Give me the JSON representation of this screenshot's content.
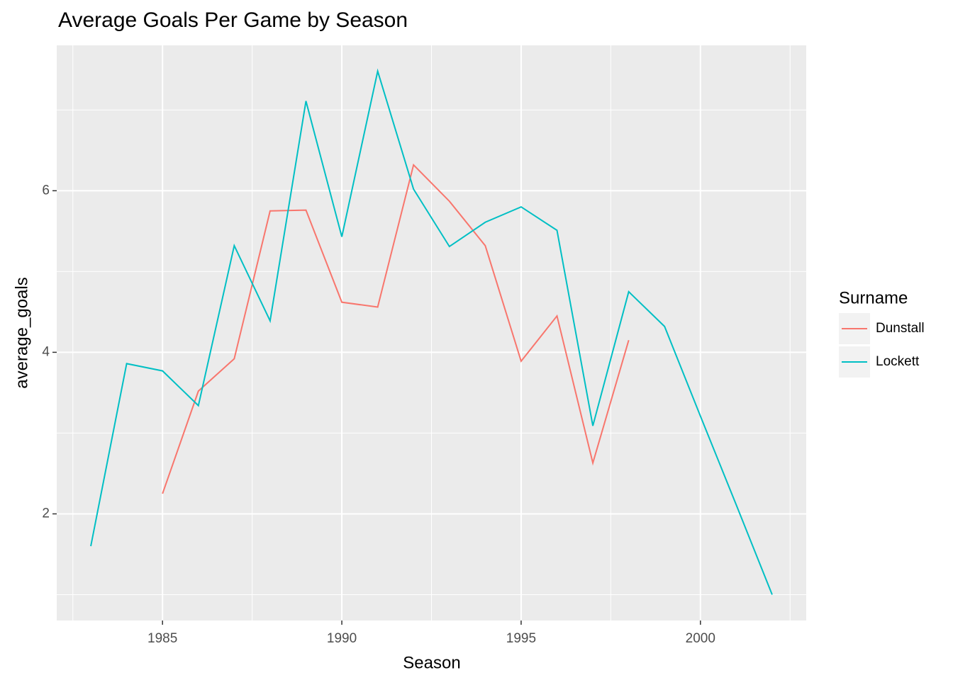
{
  "chart_data": {
    "type": "line",
    "title": "Average Goals Per Game by Season",
    "x_label": "Season",
    "y_label": "average_goals",
    "legend_title": "Surname",
    "legend_position": "right",
    "xlim": [
      1982.05,
      2002.95
    ],
    "ylim": [
      0.68,
      7.8
    ],
    "xticks": [
      1985,
      1990,
      1995,
      2000
    ],
    "yticks": [
      2,
      4,
      6
    ],
    "x_minor_ticks": [
      1982.5,
      1987.5,
      1992.5,
      1997.5,
      2002.5
    ],
    "y_minor_ticks": [
      1,
      3,
      5,
      7
    ],
    "grid": true,
    "series": [
      {
        "name": "Dunstall",
        "color": "#F8766D",
        "x": [
          1985,
          1986,
          1987,
          1988,
          1989,
          1990,
          1991,
          1992,
          1993,
          1994,
          1995,
          1996,
          1997,
          1998
        ],
        "values": [
          2.25,
          3.52,
          3.92,
          5.75,
          5.76,
          4.62,
          4.56,
          6.32,
          5.87,
          5.32,
          3.89,
          4.45,
          2.63,
          4.15
        ]
      },
      {
        "name": "Lockett",
        "color": "#00BFC4",
        "x": [
          1983,
          1984,
          1985,
          1986,
          1987,
          1988,
          1989,
          1990,
          1991,
          1992,
          1993,
          1994,
          1995,
          1996,
          1997,
          1998,
          1999,
          2000,
          2001,
          2002
        ],
        "values": [
          1.6,
          3.86,
          3.77,
          3.34,
          5.32,
          4.39,
          7.11,
          5.43,
          7.48,
          6.02,
          5.31,
          5.61,
          5.8,
          5.51,
          3.09,
          4.75,
          4.32,
          3.21,
          2.11,
          1.0
        ]
      }
    ]
  }
}
